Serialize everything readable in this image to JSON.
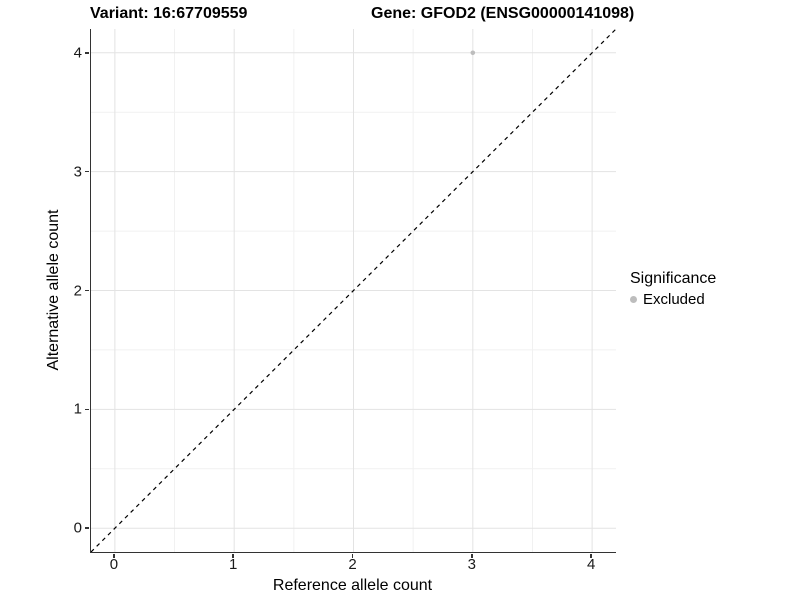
{
  "titles": {
    "variant": "Variant: 16:67709559",
    "gene": "Gene: GFOD2 (ENSG00000141098)"
  },
  "axes": {
    "x": {
      "label": "Reference allele count",
      "ticks": [
        "0",
        "1",
        "2",
        "3",
        "4"
      ]
    },
    "y": {
      "label": "Alternative allele count",
      "ticks": [
        "0",
        "1",
        "2",
        "3",
        "4"
      ]
    }
  },
  "legend": {
    "title": "Significance",
    "items": [
      {
        "label": "Excluded",
        "marker": "dot",
        "color": "#bdbdbd"
      }
    ]
  },
  "chart_data": {
    "type": "scatter",
    "title": "Variant: 16:67709559 | Gene: GFOD2 (ENSG00000141098)",
    "xlabel": "Reference allele count",
    "ylabel": "Alternative allele count",
    "xlim": [
      -0.2,
      4.2
    ],
    "ylim": [
      -0.2,
      4.2
    ],
    "x_ticks": [
      0,
      1,
      2,
      3,
      4
    ],
    "y_ticks": [
      0,
      1,
      2,
      3,
      4
    ],
    "x_minor_ticks": [
      0.5,
      1.5,
      2.5,
      3.5
    ],
    "y_minor_ticks": [
      0.5,
      1.5,
      2.5,
      3.5
    ],
    "grid": "major+minor",
    "legend_position": "right",
    "series": [
      {
        "name": "Excluded",
        "color": "#bdbdbd",
        "marker_radius": 2.3,
        "points": [
          {
            "x": 3,
            "y": 4
          }
        ]
      }
    ],
    "reference_line": {
      "description": "identity line y = x",
      "style": "dashed",
      "color": "#000000",
      "from": [
        -0.2,
        -0.2
      ],
      "to": [
        4.2,
        4.2
      ]
    }
  },
  "colors": {
    "background": "#ffffff",
    "grid_major": "#e3e3e3",
    "grid_minor": "#f1f1f1",
    "axis_line": "#333333",
    "tick_text": "#1a1a1a",
    "title_text": "#000000",
    "point": "#bdbdbd"
  }
}
